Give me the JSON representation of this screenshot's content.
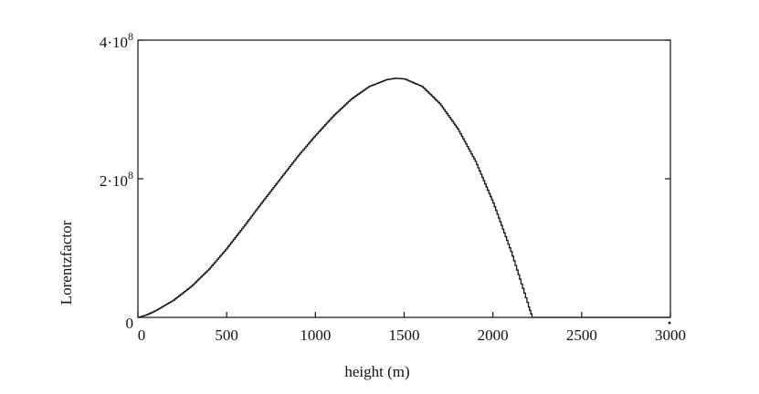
{
  "chart_data": {
    "type": "line",
    "title": "",
    "xlabel": "height  (m)",
    "ylabel": "Lorentzfactor",
    "xlim": [
      0,
      3000
    ],
    "ylim": [
      0,
      400000000
    ],
    "x_ticks": [
      {
        "value": 0,
        "label": "0"
      },
      {
        "value": 500,
        "label": "500"
      },
      {
        "value": 1000,
        "label": "1000"
      },
      {
        "value": 1500,
        "label": "1500"
      },
      {
        "value": 2000,
        "label": "2000"
      },
      {
        "value": 2500,
        "label": "2500"
      },
      {
        "value": 3000,
        "label": "3000"
      }
    ],
    "y_ticks": [
      {
        "value": 0,
        "label": "0",
        "mantissa": "0",
        "exponent": ""
      },
      {
        "value": 200000000,
        "label": "2·10^8",
        "mantissa": "2·10",
        "exponent": "8"
      },
      {
        "value": 400000000,
        "label": "4·10^8",
        "mantissa": "4·10",
        "exponent": "8"
      }
    ],
    "grid": false,
    "series": [
      {
        "color": "#111111",
        "x": [
          0,
          50,
          100,
          200,
          300,
          400,
          500,
          600,
          700,
          800,
          900,
          1000,
          1100,
          1200,
          1300,
          1400,
          1450,
          1500,
          1600,
          1700,
          1800,
          1900,
          2000,
          2100,
          2150,
          2200,
          2220,
          2300,
          2500,
          3000
        ],
        "y": [
          0,
          4000000,
          10000000,
          25000000,
          45000000,
          70000000,
          100000000,
          133000000,
          167000000,
          200000000,
          233000000,
          263000000,
          291000000,
          315000000,
          333000000,
          343000000,
          345000000,
          344000000,
          333000000,
          308000000,
          272000000,
          225000000,
          165000000,
          95000000,
          55000000,
          15000000,
          0,
          0,
          0,
          0
        ]
      }
    ]
  }
}
